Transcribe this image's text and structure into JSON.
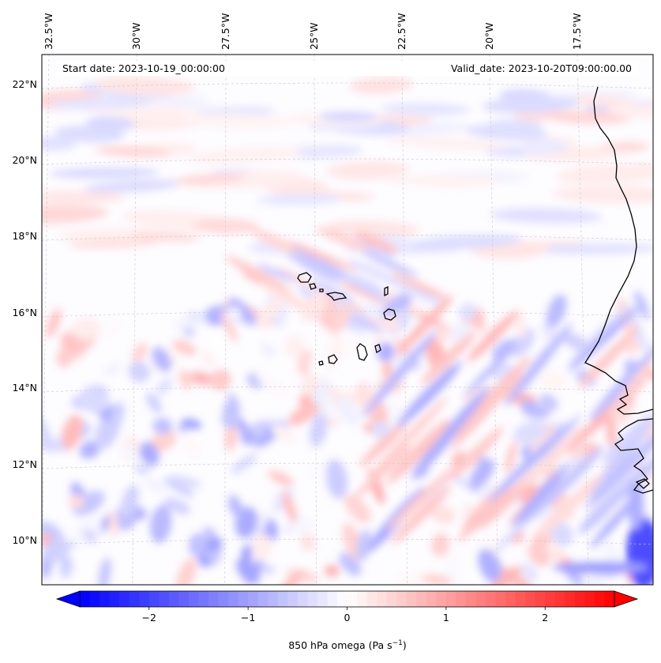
{
  "header": {
    "start_date": "Start date: 2023-10-19_00:00:00",
    "valid_date": "Valid_date: 2023-10-20T09:00:00.00"
  },
  "map": {
    "projection": "conic",
    "variable": "850 hPa omega",
    "field_range": [
      -2.7,
      2.7
    ],
    "longitude_labels": [
      "32.5°W",
      "30°W",
      "27.5°W",
      "25°W",
      "22.5°W",
      "20°W",
      "17.5°W"
    ],
    "latitude_labels": [
      "22°N",
      "20°N",
      "18°N",
      "16°N",
      "14°N",
      "12°N",
      "10°N"
    ],
    "gridlines": "dashed, light grey",
    "coastline_features": [
      "West African coast",
      "Cape Verde islands"
    ]
  },
  "colorbar": {
    "label": "850 hPa omega (Pa s",
    "label_sup": "−1",
    "label_end": ")",
    "colormap": "bwr",
    "min_color": "#0000ff",
    "mid_color": "#ffffff",
    "max_color": "#ff0000",
    "extend": "both",
    "ticks": [
      -2,
      -1,
      0,
      1,
      2
    ],
    "tick_labels": [
      "−2",
      "−1",
      "0",
      "1",
      "2"
    ],
    "range": [
      -2.7,
      2.7
    ]
  }
}
